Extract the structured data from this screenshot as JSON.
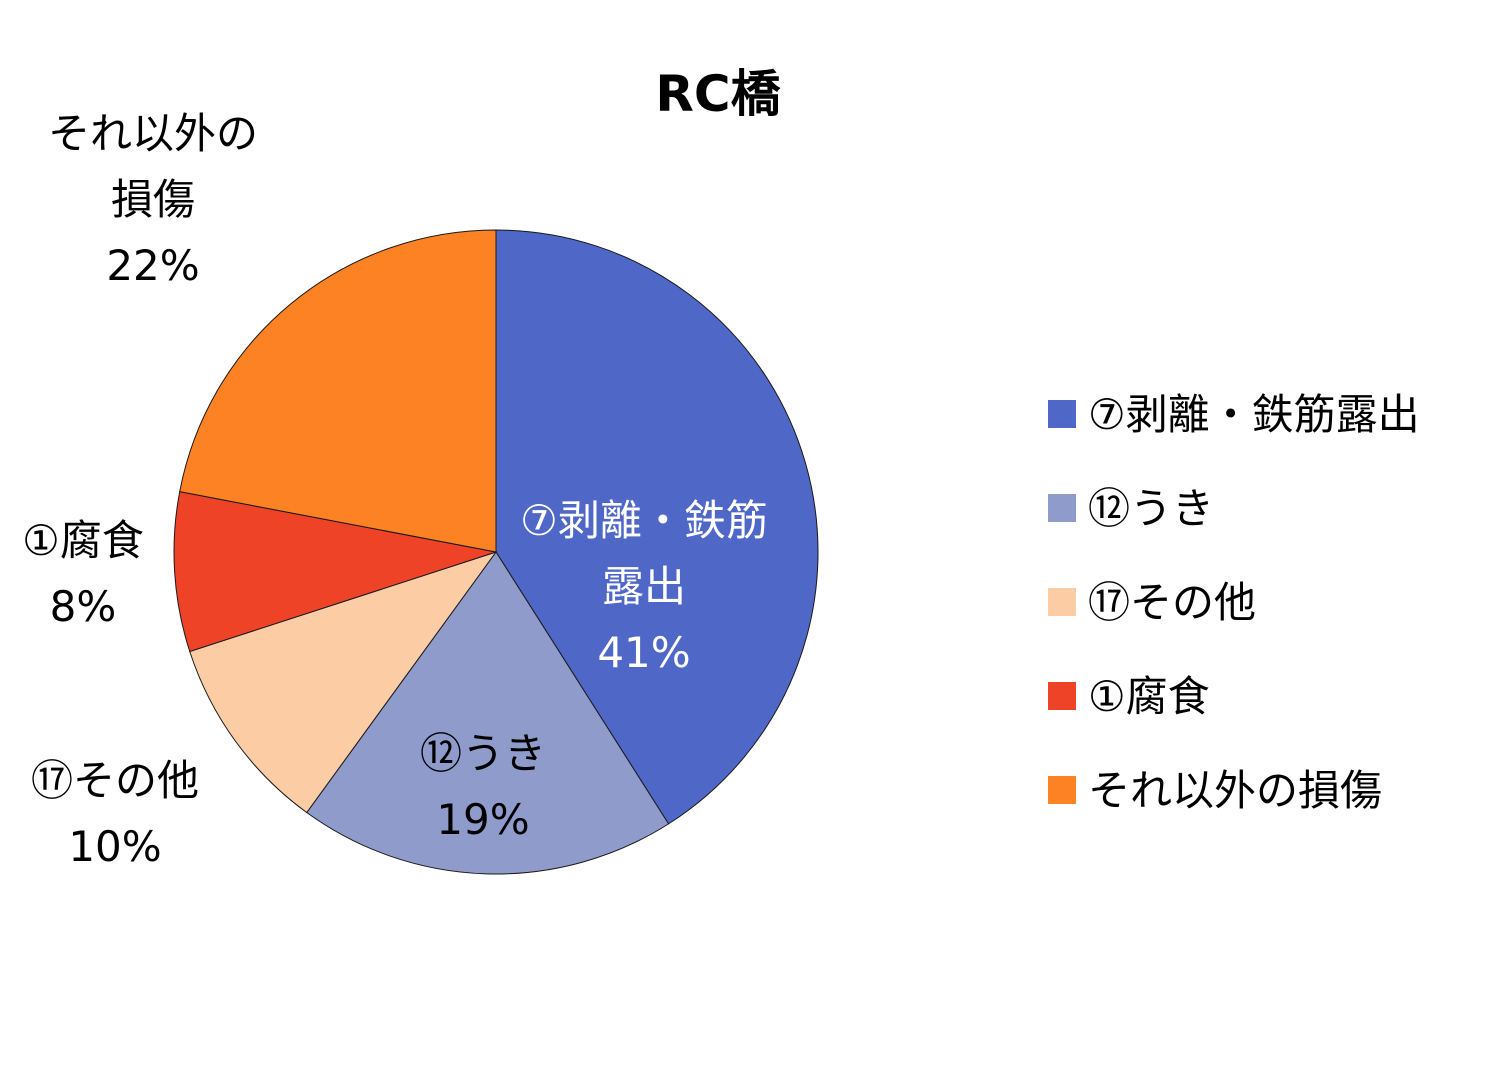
{
  "chart_data": {
    "type": "pie",
    "title": "RC橋",
    "categories": [
      "⑦剥離・鉄筋露出",
      "⑫うき",
      "⑰その他",
      "①腐食",
      "それ以外の損傷"
    ],
    "values": [
      41,
      19,
      10,
      8,
      22
    ],
    "value_labels": [
      "41%",
      "19%",
      "10%",
      "8%",
      "22%"
    ],
    "slice_label_lines": [
      [
        "⑦剥離・鉄筋",
        "露出"
      ],
      [
        "⑫うき"
      ],
      [
        "⑰その他"
      ],
      [
        "①腐食"
      ],
      [
        "それ以外の",
        "損傷"
      ]
    ],
    "colors": [
      "#4F67C6",
      "#8F9BCB",
      "#FCCDA5",
      "#EE4326",
      "#FC8223"
    ],
    "label_colors": [
      "#ffffff",
      "#000000",
      "#000000",
      "#000000",
      "#000000"
    ],
    "start_angle": "12 o'clock",
    "direction": "clockwise",
    "legend_position": "right"
  }
}
